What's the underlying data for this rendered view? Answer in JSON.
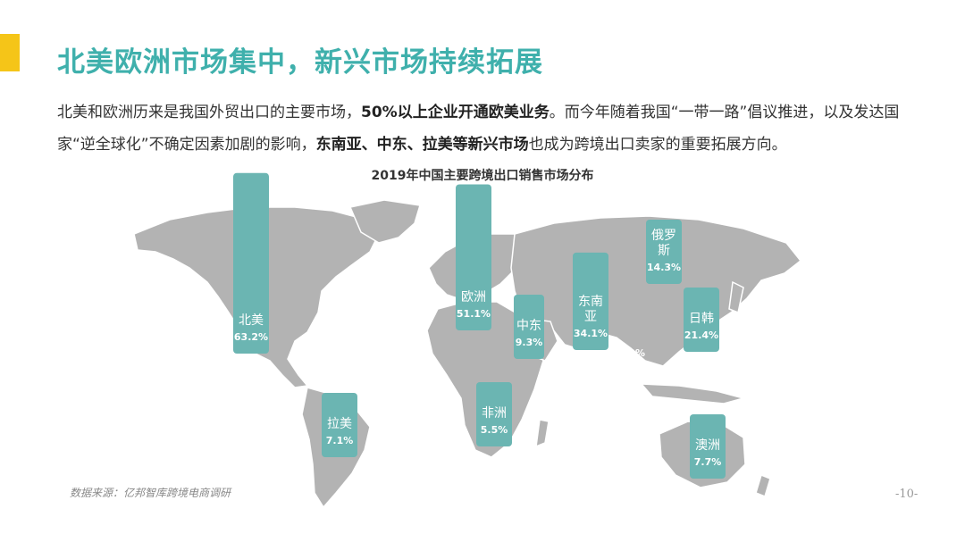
{
  "header": {
    "title": "北美欧洲市场集中，新兴市场持续拓展",
    "para_1": "北美和欧洲历来是我国外贸出口的主要市场，",
    "para_b1": "50%以上企业开通欧美业务",
    "para_2": "。而今年随着我国“一带一路”倡议推进，以及发达国家“逆全球化”不确定因素加剧的影响，",
    "para_b2": "东南亚、中东、拉美等新兴市场",
    "para_3": "也成为跨境出口卖家的重要拓展方向。"
  },
  "chart_data": {
    "type": "bar",
    "title": "2019年中国主要跨境出口销售市场分布",
    "categories": [
      "北美",
      "欧洲",
      "中东",
      "东南亚",
      "俄罗斯",
      "日韩",
      "拉美",
      "非洲",
      "澳洲"
    ],
    "values": [
      63.2,
      51.1,
      9.3,
      34.1,
      14.3,
      21.4,
      7.1,
      5.5,
      7.7
    ],
    "labels": [
      "63.2%",
      "51.1%",
      "9.3%",
      "34.1%",
      "14.3%",
      "21.4%",
      "7.1%",
      "5.5%",
      "7.7%"
    ],
    "annotations": [
      "63.2%"
    ],
    "unit": "%"
  },
  "colors": {
    "accent": "#f5c518",
    "title": "#3fb0ac",
    "bar": "#6bb5b2",
    "map": "#b3b3b3"
  },
  "footer": {
    "source": "数据来源：亿邦智库跨境电商调研",
    "page": "-10-"
  }
}
